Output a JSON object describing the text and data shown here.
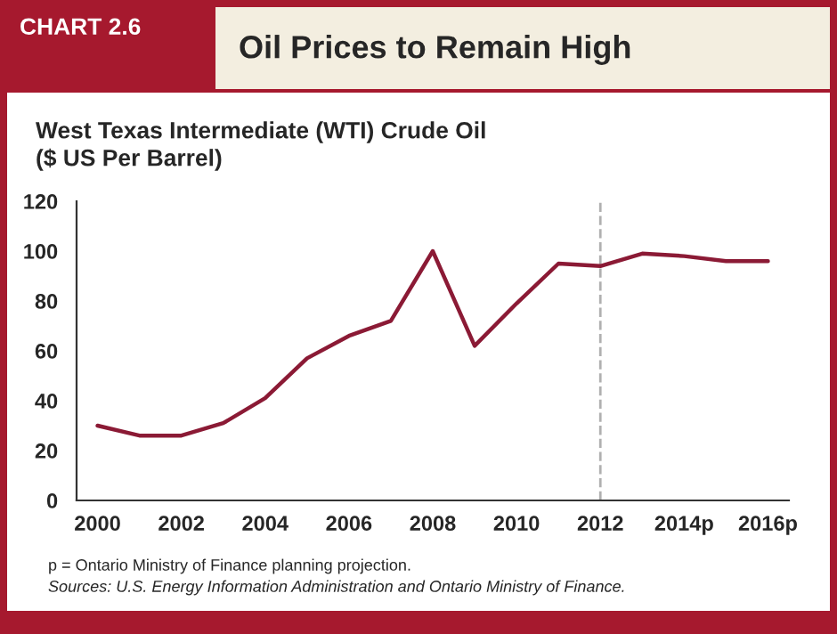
{
  "chart_data": {
    "type": "line",
    "title": "Oil Prices to Remain High",
    "subtitle": "West Texas Intermediate (WTI) Crude Oil\n($ US Per Barrel)",
    "annotations": [
      "CHART 2.6",
      "p = Ontario Ministry of Finance planning projection.",
      "Sources: U.S. Energy Information Administration and Ontario Ministry of Finance."
    ],
    "categories": [
      "2000",
      null,
      "2002",
      null,
      "2004",
      null,
      "2006",
      null,
      "2008",
      null,
      "2010",
      null,
      "2012",
      null,
      "2014p",
      null,
      "2016p"
    ],
    "series": [
      {
        "color": "#8b1a35",
        "values": [
          30,
          26,
          26,
          31,
          41,
          57,
          66,
          72,
          100,
          62,
          79,
          95,
          94,
          99,
          98,
          96,
          96
        ]
      }
    ],
    "ylim": [
      0,
      120
    ],
    "yticks": [
      0,
      20,
      40,
      60,
      80,
      100,
      120
    ],
    "ref_lines": [
      {
        "axis": "x",
        "value": "2012",
        "color": "#b0b0b0",
        "line_style": "dashed"
      }
    ],
    "grid": false,
    "legend": false,
    "marker": "none",
    "line_style": "solid"
  }
}
